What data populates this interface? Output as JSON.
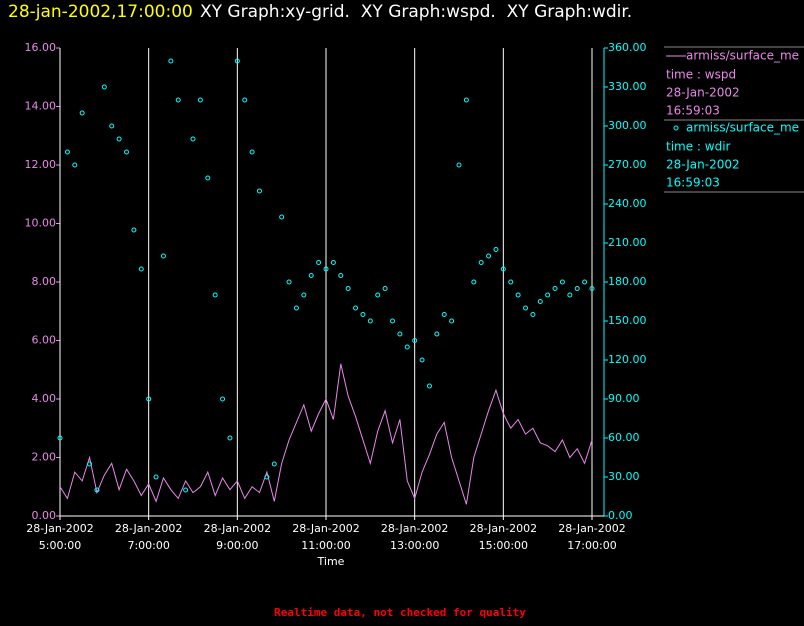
{
  "chart_data": {
    "type": "line",
    "title": "28-jan-2002,17:00:00",
    "subtitle": "XY Graph:xy-grid.  XY Graph:wspd.  XY Graph:wdir.",
    "x_label": "Time",
    "annotation": "Realtime data, not checked for quality",
    "grid": true,
    "x": [
      "2002-01-28 05:00",
      "2002-01-28 05:10",
      "2002-01-28 05:20",
      "2002-01-28 05:30",
      "2002-01-28 05:40",
      "2002-01-28 05:50",
      "2002-01-28 06:00",
      "2002-01-28 06:10",
      "2002-01-28 06:20",
      "2002-01-28 06:30",
      "2002-01-28 06:40",
      "2002-01-28 06:50",
      "2002-01-28 07:00",
      "2002-01-28 07:10",
      "2002-01-28 07:20",
      "2002-01-28 07:30",
      "2002-01-28 07:40",
      "2002-01-28 07:50",
      "2002-01-28 08:00",
      "2002-01-28 08:10",
      "2002-01-28 08:20",
      "2002-01-28 08:30",
      "2002-01-28 08:40",
      "2002-01-28 08:50",
      "2002-01-28 09:00",
      "2002-01-28 09:10",
      "2002-01-28 09:20",
      "2002-01-28 09:30",
      "2002-01-28 09:40",
      "2002-01-28 09:50",
      "2002-01-28 10:00",
      "2002-01-28 10:10",
      "2002-01-28 10:20",
      "2002-01-28 10:30",
      "2002-01-28 10:40",
      "2002-01-28 10:50",
      "2002-01-28 11:00",
      "2002-01-28 11:10",
      "2002-01-28 11:20",
      "2002-01-28 11:30",
      "2002-01-28 11:40",
      "2002-01-28 11:50",
      "2002-01-28 12:00",
      "2002-01-28 12:10",
      "2002-01-28 12:20",
      "2002-01-28 12:30",
      "2002-01-28 12:40",
      "2002-01-28 12:50",
      "2002-01-28 13:00",
      "2002-01-28 13:10",
      "2002-01-28 13:20",
      "2002-01-28 13:30",
      "2002-01-28 13:40",
      "2002-01-28 13:50",
      "2002-01-28 14:00",
      "2002-01-28 14:10",
      "2002-01-28 14:20",
      "2002-01-28 14:30",
      "2002-01-28 14:40",
      "2002-01-28 14:50",
      "2002-01-28 15:00",
      "2002-01-28 15:10",
      "2002-01-28 15:20",
      "2002-01-28 15:30",
      "2002-01-28 15:40",
      "2002-01-28 15:50",
      "2002-01-28 16:00",
      "2002-01-28 16:10",
      "2002-01-28 16:20",
      "2002-01-28 16:30",
      "2002-01-28 16:40",
      "2002-01-28 16:50",
      "2002-01-28 17:00"
    ],
    "xlim": [
      "2002-01-28 05:00",
      "2002-01-28 17:00"
    ],
    "xticks": [
      {
        "value": "2002-01-28 05:00",
        "label": [
          "28-Jan-2002",
          "5:00:00"
        ]
      },
      {
        "value": "2002-01-28 07:00",
        "label": [
          "28-Jan-2002",
          "7:00:00"
        ]
      },
      {
        "value": "2002-01-28 09:00",
        "label": [
          "28-Jan-2002",
          "9:00:00"
        ]
      },
      {
        "value": "2002-01-28 11:00",
        "label": [
          "28-Jan-2002",
          "11:00:00"
        ]
      },
      {
        "value": "2002-01-28 13:00",
        "label": [
          "28-Jan-2002",
          "13:00:00"
        ]
      },
      {
        "value": "2002-01-28 15:00",
        "label": [
          "28-Jan-2002",
          "15:00:00"
        ]
      },
      {
        "value": "2002-01-28 17:00",
        "label": [
          "28-Jan-2002",
          "17:00:00"
        ]
      }
    ],
    "ylim": [
      0,
      16
    ],
    "yticks": [
      {
        "value": 0,
        "label": "0.00"
      },
      {
        "value": 2,
        "label": "2.00"
      },
      {
        "value": 4,
        "label": "4.00"
      },
      {
        "value": 6,
        "label": "6.00"
      },
      {
        "value": 8,
        "label": "8.00"
      },
      {
        "value": 10,
        "label": "10.00"
      },
      {
        "value": 12,
        "label": "12.00"
      },
      {
        "value": 14,
        "label": "14.00"
      },
      {
        "value": 16,
        "label": "16.00"
      }
    ],
    "y2lim": [
      0,
      360
    ],
    "y2ticks": [
      {
        "value": 0,
        "label": "0.00"
      },
      {
        "value": 30,
        "label": "30.00"
      },
      {
        "value": 60,
        "label": "60.00"
      },
      {
        "value": 90,
        "label": "90.00"
      },
      {
        "value": 120,
        "label": "120.00"
      },
      {
        "value": 150,
        "label": "150.00"
      },
      {
        "value": 180,
        "label": "180.00"
      },
      {
        "value": 210,
        "label": "210.00"
      },
      {
        "value": 240,
        "label": "240.00"
      },
      {
        "value": 270,
        "label": "270.00"
      },
      {
        "value": 300,
        "label": "300.00"
      },
      {
        "value": 330,
        "label": "330.00"
      },
      {
        "value": 360,
        "label": "360.00"
      }
    ],
    "series": [
      {
        "name": "armiss/surface_me",
        "type": "line",
        "color": "#e888e8",
        "legend_details": [
          "time : wspd",
          "28-Jan-2002",
          "16:59:03"
        ],
        "values": [
          1.0,
          0.6,
          1.5,
          1.2,
          2.0,
          0.8,
          1.4,
          1.8,
          0.9,
          1.6,
          1.2,
          0.7,
          1.1,
          0.5,
          1.3,
          0.9,
          0.6,
          1.2,
          0.8,
          1.0,
          1.5,
          0.7,
          1.3,
          0.9,
          1.2,
          0.6,
          1.0,
          0.8,
          1.5,
          0.5,
          1.8,
          2.6,
          3.2,
          3.8,
          2.9,
          3.5,
          4.0,
          3.3,
          5.2,
          4.1,
          3.4,
          2.6,
          1.8,
          2.9,
          3.6,
          2.5,
          3.3,
          1.2,
          0.6,
          1.5,
          2.1,
          2.8,
          3.2,
          2.0,
          1.2,
          0.4,
          2.0,
          2.8,
          3.6,
          4.3,
          3.5,
          3.0,
          3.3,
          2.8,
          3.0,
          2.5,
          2.4,
          2.2,
          2.6,
          2.0,
          2.3,
          1.8,
          2.6
        ]
      },
      {
        "name": "armiss/surface_me",
        "type": "scatter",
        "axis": "y2",
        "color": "#00ffff",
        "legend_details": [
          "time : wdir",
          "28-Jan-2002",
          "16:59:03"
        ],
        "values": [
          60,
          280,
          270,
          310,
          40,
          20,
          330,
          300,
          290,
          280,
          220,
          190,
          90,
          30,
          200,
          350,
          320,
          20,
          290,
          320,
          260,
          170,
          90,
          60,
          350,
          320,
          280,
          250,
          30,
          40,
          230,
          180,
          160,
          170,
          185,
          195,
          190,
          195,
          185,
          175,
          160,
          155,
          150,
          170,
          175,
          150,
          140,
          130,
          135,
          120,
          100,
          140,
          155,
          150,
          270,
          320,
          180,
          195,
          200,
          205,
          190,
          180,
          170,
          160,
          155,
          165,
          170,
          175,
          180,
          170,
          175,
          180,
          175
        ]
      }
    ]
  }
}
